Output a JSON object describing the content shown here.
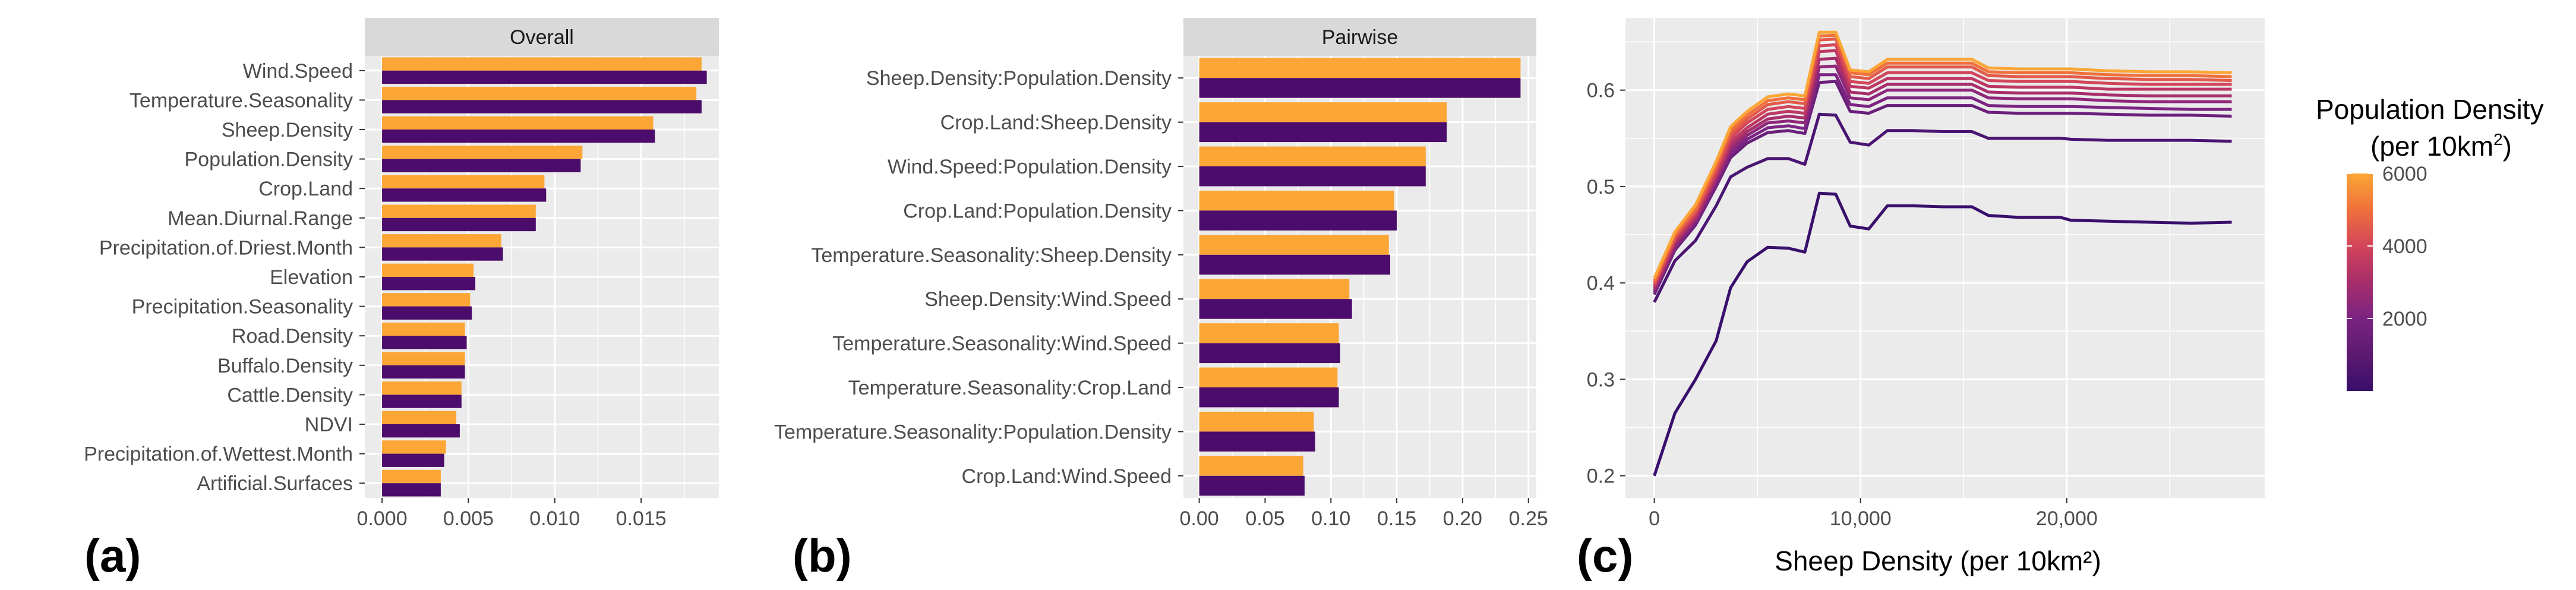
{
  "colors": {
    "panel_bg": "#ebebeb",
    "grid": "#ffffff",
    "strip_bg": "#d9d9d9",
    "tick_text": "#4d4d4d",
    "orange": "#fca636",
    "purple": "#4b0c6b",
    "gradient": [
      "#380f6b",
      "#5c1a6f",
      "#7b2382",
      "#a72d6b",
      "#d2455a",
      "#f0703b",
      "#fca636"
    ]
  },
  "panel_labels": {
    "a": "(a)",
    "b": "(b)",
    "c": "(c)"
  },
  "chart_data": [
    {
      "type": "bar",
      "panel": "a",
      "title": "Overall",
      "categories": [
        "Wind.Speed",
        "Temperature.Seasonality",
        "Sheep.Density",
        "Population.Density",
        "Crop.Land",
        "Mean.Diurnal.Range",
        "Precipitation.of.Driest.Month",
        "Elevation",
        "Precipitation.Seasonality",
        "Road.Density",
        "Buffalo.Density",
        "Cattle.Density",
        "NDVI",
        "Precipitation.of.Wettest.Month",
        "Artificial.Surfaces"
      ],
      "series": [
        {
          "name": "orange",
          "color": "#fca636",
          "values": [
            0.0185,
            0.0182,
            0.0157,
            0.0116,
            0.0094,
            0.0089,
            0.0069,
            0.0053,
            0.0051,
            0.0048,
            0.0048,
            0.0046,
            0.0043,
            0.0037,
            0.0034
          ]
        },
        {
          "name": "purple",
          "color": "#4b0c6b",
          "values": [
            0.0188,
            0.0185,
            0.0158,
            0.0115,
            0.0095,
            0.0089,
            0.007,
            0.0054,
            0.0052,
            0.0049,
            0.0048,
            0.0046,
            0.0045,
            0.0036,
            0.0034
          ]
        }
      ],
      "xlim": [
        -0.001,
        0.0195
      ],
      "xticks": [
        0,
        0.005,
        0.01,
        0.015
      ],
      "xtick_labels": [
        "0.000",
        "0.005",
        "0.010",
        "0.015"
      ],
      "xlabel": "",
      "ylabel": ""
    },
    {
      "type": "bar",
      "panel": "b",
      "title": "Pairwise",
      "categories": [
        "Sheep.Density:Population.Density",
        "Crop.Land:Sheep.Density",
        "Wind.Speed:Population.Density",
        "Crop.Land:Population.Density",
        "Temperature.Seasonality:Sheep.Density",
        "Sheep.Density:Wind.Speed",
        "Temperature.Seasonality:Wind.Speed",
        "Temperature.Seasonality:Crop.Land",
        "Temperature.Seasonality:Population.Density",
        "Crop.Land:Wind.Speed"
      ],
      "series": [
        {
          "name": "orange",
          "color": "#fca636",
          "values": [
            0.244,
            0.188,
            0.172,
            0.148,
            0.144,
            0.114,
            0.106,
            0.105,
            0.087,
            0.079
          ]
        },
        {
          "name": "purple",
          "color": "#4b0c6b",
          "values": [
            0.244,
            0.188,
            0.172,
            0.15,
            0.145,
            0.116,
            0.107,
            0.106,
            0.088,
            0.08
          ]
        }
      ],
      "xlim": [
        -0.012,
        0.256
      ],
      "xticks": [
        0,
        0.05,
        0.1,
        0.15,
        0.2,
        0.25
      ],
      "xtick_labels": [
        "0.00",
        "0.05",
        "0.10",
        "0.15",
        "0.20",
        "0.25"
      ],
      "xlabel": "",
      "ylabel": ""
    },
    {
      "type": "line",
      "panel": "c",
      "title": "",
      "xlabel": "Sheep Density (per 10km²)",
      "ylabel": "",
      "xlim": [
        -1400,
        29600
      ],
      "ylim": [
        0.177,
        0.675
      ],
      "xticks": [
        0,
        10000,
        20000
      ],
      "xtick_labels": [
        "0",
        "10,000",
        "20,000"
      ],
      "yticks": [
        0.2,
        0.3,
        0.4,
        0.5,
        0.6
      ],
      "ytick_labels": [
        "0.2",
        "0.3",
        "0.4",
        "0.5",
        "0.6"
      ],
      "x": [
        0,
        1000,
        2000,
        3000,
        3700,
        4500,
        5500,
        6500,
        7300,
        8000,
        8800,
        9500,
        10400,
        11300,
        12500,
        14000,
        15400,
        16200,
        17700,
        19700,
        20200,
        22000,
        24000,
        26000,
        28000
      ],
      "series": [
        {
          "name": "100",
          "value": 100,
          "color": "#380f6b",
          "values": [
            0.2,
            0.265,
            0.3,
            0.34,
            0.395,
            0.422,
            0.437,
            0.436,
            0.432,
            0.493,
            0.492,
            0.459,
            0.456,
            0.48,
            0.48,
            0.479,
            0.479,
            0.47,
            0.468,
            0.468,
            0.465,
            0.464,
            0.463,
            0.462,
            0.463
          ]
        },
        {
          "name": "1000",
          "value": 1000,
          "color": "#4a1472",
          "values": [
            0.38,
            0.423,
            0.444,
            0.48,
            0.51,
            0.52,
            0.529,
            0.529,
            0.523,
            0.575,
            0.574,
            0.546,
            0.543,
            0.558,
            0.558,
            0.557,
            0.557,
            0.55,
            0.55,
            0.55,
            0.549,
            0.548,
            0.548,
            0.548,
            0.547
          ]
        },
        {
          "name": "2000",
          "value": 2000,
          "color": "#6a1f7a",
          "values": [
            0.388,
            0.434,
            0.46,
            0.5,
            0.53,
            0.545,
            0.556,
            0.558,
            0.555,
            0.608,
            0.609,
            0.578,
            0.576,
            0.584,
            0.584,
            0.584,
            0.584,
            0.577,
            0.576,
            0.576,
            0.576,
            0.575,
            0.574,
            0.574,
            0.573
          ]
        },
        {
          "name": "2500",
          "value": 2500,
          "color": "#7b2382",
          "values": [
            0.39,
            0.436,
            0.462,
            0.503,
            0.534,
            0.549,
            0.561,
            0.563,
            0.56,
            0.616,
            0.616,
            0.585,
            0.583,
            0.592,
            0.592,
            0.592,
            0.592,
            0.584,
            0.583,
            0.583,
            0.583,
            0.582,
            0.581,
            0.58,
            0.58
          ]
        },
        {
          "name": "3000",
          "value": 3000,
          "color": "#8e2779",
          "values": [
            0.392,
            0.438,
            0.465,
            0.506,
            0.538,
            0.553,
            0.566,
            0.568,
            0.566,
            0.624,
            0.625,
            0.592,
            0.59,
            0.6,
            0.6,
            0.6,
            0.6,
            0.592,
            0.591,
            0.591,
            0.591,
            0.589,
            0.588,
            0.588,
            0.588
          ]
        },
        {
          "name": "3500",
          "value": 3500,
          "color": "#a72d6b",
          "values": [
            0.394,
            0.441,
            0.467,
            0.509,
            0.542,
            0.557,
            0.57,
            0.573,
            0.571,
            0.632,
            0.633,
            0.598,
            0.596,
            0.606,
            0.606,
            0.606,
            0.606,
            0.598,
            0.597,
            0.597,
            0.597,
            0.595,
            0.594,
            0.594,
            0.594
          ]
        },
        {
          "name": "4000",
          "value": 4000,
          "color": "#bd3763",
          "values": [
            0.396,
            0.443,
            0.47,
            0.512,
            0.546,
            0.561,
            0.575,
            0.578,
            0.576,
            0.64,
            0.641,
            0.604,
            0.602,
            0.612,
            0.612,
            0.612,
            0.612,
            0.604,
            0.603,
            0.603,
            0.603,
            0.601,
            0.601,
            0.601,
            0.601
          ]
        },
        {
          "name": "4500",
          "value": 4500,
          "color": "#d2455a",
          "values": [
            0.398,
            0.446,
            0.472,
            0.516,
            0.55,
            0.566,
            0.58,
            0.583,
            0.581,
            0.646,
            0.647,
            0.609,
            0.607,
            0.618,
            0.618,
            0.618,
            0.618,
            0.61,
            0.609,
            0.609,
            0.609,
            0.607,
            0.606,
            0.606,
            0.606
          ]
        },
        {
          "name": "5000",
          "value": 5000,
          "color": "#e35a4a",
          "values": [
            0.4,
            0.448,
            0.475,
            0.519,
            0.554,
            0.57,
            0.585,
            0.588,
            0.586,
            0.652,
            0.653,
            0.614,
            0.612,
            0.624,
            0.624,
            0.624,
            0.624,
            0.615,
            0.614,
            0.614,
            0.614,
            0.612,
            0.611,
            0.611,
            0.61
          ]
        },
        {
          "name": "5500",
          "value": 5500,
          "color": "#f0703b",
          "values": [
            0.402,
            0.45,
            0.477,
            0.522,
            0.558,
            0.574,
            0.589,
            0.592,
            0.59,
            0.656,
            0.657,
            0.618,
            0.616,
            0.628,
            0.628,
            0.628,
            0.628,
            0.619,
            0.618,
            0.618,
            0.618,
            0.616,
            0.615,
            0.615,
            0.614
          ]
        },
        {
          "name": "6000",
          "value": 6000,
          "color": "#fca636",
          "values": [
            0.405,
            0.453,
            0.481,
            0.526,
            0.562,
            0.578,
            0.593,
            0.596,
            0.594,
            0.66,
            0.66,
            0.621,
            0.619,
            0.632,
            0.632,
            0.632,
            0.632,
            0.623,
            0.622,
            0.622,
            0.622,
            0.62,
            0.619,
            0.619,
            0.618
          ]
        }
      ],
      "legend": {
        "title_line1": "Population Density",
        "title_line2_prefix": "(per 10km",
        "title_line2_sup": "2",
        "title_line2_suffix": ")",
        "min": 0,
        "max": 6000,
        "labels": [
          {
            "value": 2000,
            "text": "2000"
          },
          {
            "value": 4000,
            "text": "4000"
          },
          {
            "value": 6000,
            "text": "6000"
          }
        ]
      }
    }
  ]
}
